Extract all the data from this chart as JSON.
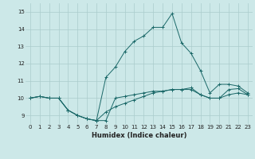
{
  "xlabel": "Humidex (Indice chaleur)",
  "ylabel": "",
  "background_color": "#cce8e8",
  "grid_color": "#aacccc",
  "line_color": "#1a6868",
  "xlim": [
    -0.5,
    23.5
  ],
  "ylim": [
    8.5,
    15.5
  ],
  "xticks": [
    0,
    1,
    2,
    3,
    4,
    5,
    6,
    7,
    8,
    9,
    10,
    11,
    12,
    13,
    14,
    15,
    16,
    17,
    18,
    19,
    20,
    21,
    22,
    23
  ],
  "yticks": [
    9,
    10,
    11,
    12,
    13,
    14,
    15
  ],
  "series": [
    [
      10.0,
      10.1,
      10.0,
      10.0,
      9.3,
      9.0,
      8.8,
      8.7,
      8.7,
      10.0,
      10.1,
      10.2,
      10.3,
      10.4,
      10.4,
      10.5,
      10.5,
      10.5,
      10.2,
      10.0,
      10.0,
      10.2,
      10.3,
      10.2
    ],
    [
      10.0,
      10.1,
      10.0,
      10.0,
      9.3,
      9.0,
      8.8,
      8.7,
      9.2,
      9.5,
      9.7,
      9.9,
      10.1,
      10.3,
      10.4,
      10.5,
      10.5,
      10.6,
      10.2,
      10.0,
      10.0,
      10.5,
      10.55,
      10.2
    ],
    [
      10.0,
      10.1,
      10.0,
      10.0,
      9.3,
      9.0,
      8.8,
      8.7,
      11.2,
      11.8,
      12.7,
      13.3,
      13.6,
      14.1,
      14.1,
      14.9,
      13.2,
      12.6,
      11.6,
      10.3,
      10.8,
      10.8,
      10.7,
      10.3
    ]
  ]
}
